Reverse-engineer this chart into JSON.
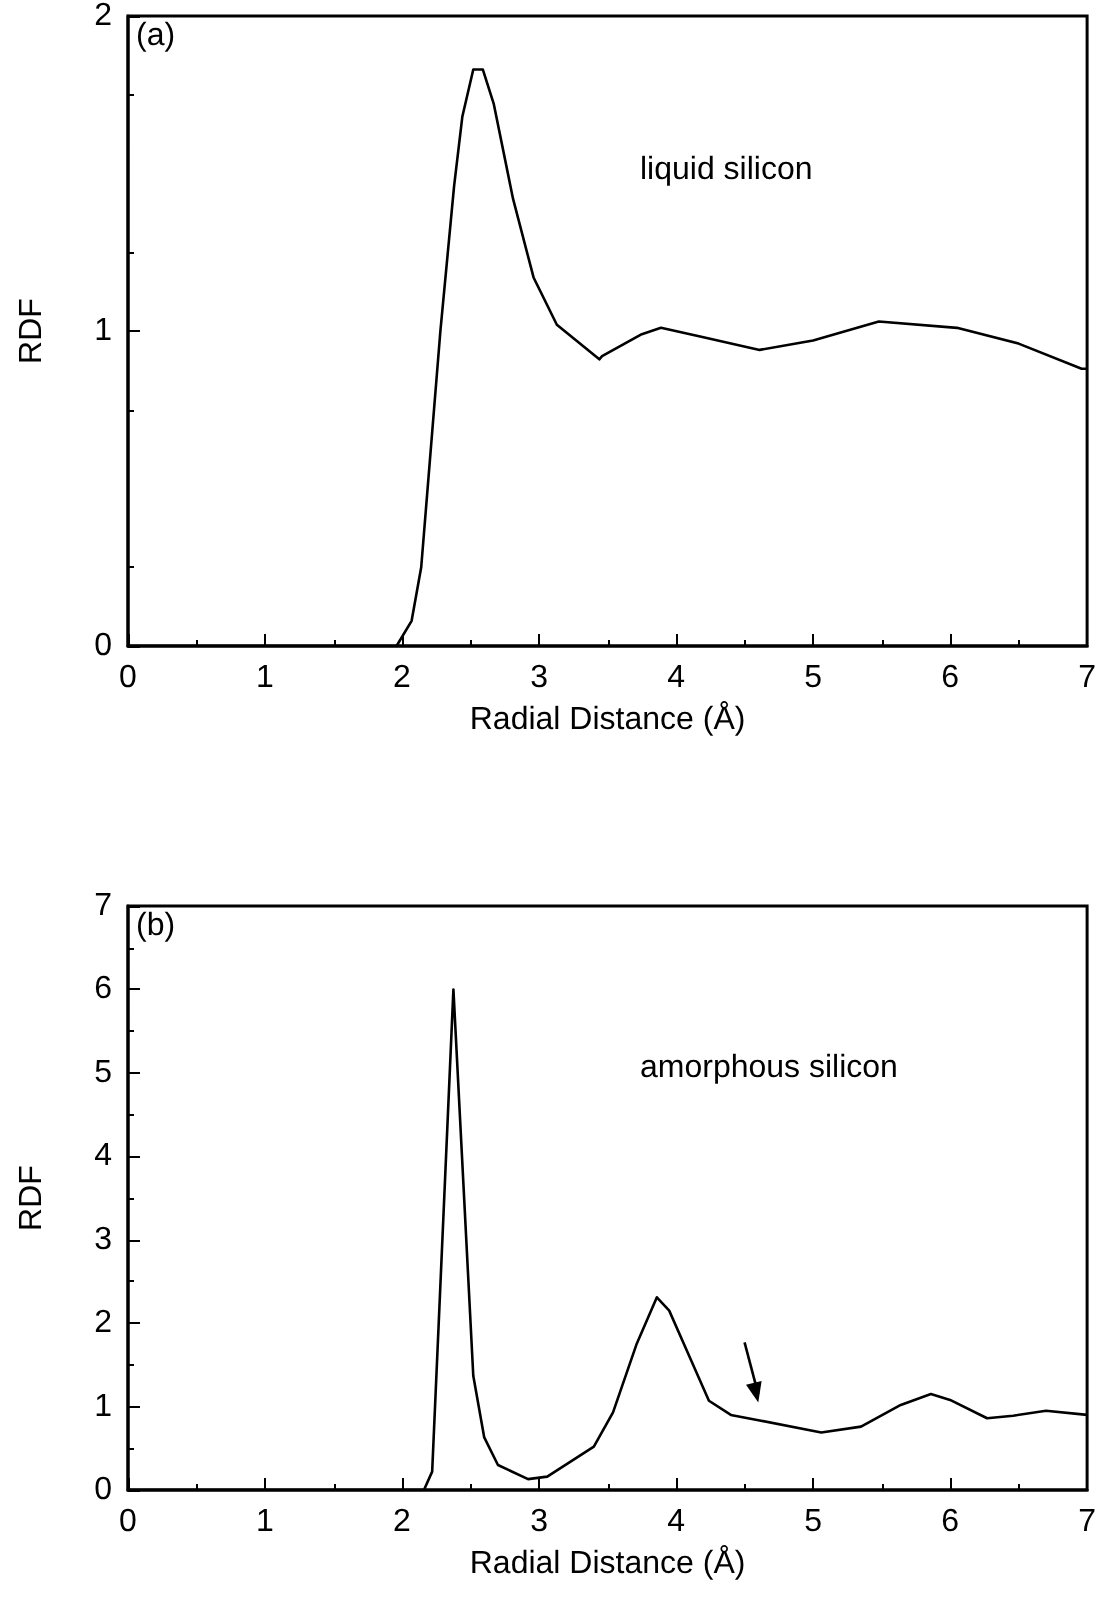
{
  "chart_data": [
    {
      "type": "line",
      "title": "(a)",
      "xlabel": "Radial Distance (Å)",
      "ylabel": "RDF",
      "annotations": [
        "liquid silicon"
      ],
      "xlim": [
        0,
        7
      ],
      "xticks": [
        0,
        1,
        2,
        3,
        4,
        5,
        6,
        7
      ],
      "ylim": [
        0,
        2
      ],
      "yticks": [
        0,
        1,
        2
      ],
      "marker": "none",
      "line_style": "solid",
      "series": [
        {
          "color": "#000000",
          "x": [
            0,
            1.0,
            1.9,
            1.96,
            2.07,
            2.14,
            2.28,
            2.38,
            2.44,
            2.52,
            2.59,
            2.67,
            2.81,
            2.96,
            3.13,
            3.44,
            3.46,
            3.75,
            3.89,
            4.2,
            4.61,
            5.0,
            5.48,
            6.05,
            6.5,
            6.96,
            7.0
          ],
          "values": [
            0,
            0,
            0,
            0,
            0.08,
            0.25,
            1.0,
            1.46,
            1.68,
            1.83,
            1.83,
            1.72,
            1.42,
            1.17,
            1.02,
            0.91,
            0.92,
            0.99,
            1.01,
            0.98,
            0.94,
            0.97,
            1.03,
            1.01,
            0.96,
            0.88,
            0.88
          ]
        }
      ]
    },
    {
      "type": "line",
      "title": "(b)",
      "xlabel": "Radial Distance (Å)",
      "ylabel": "RDF",
      "annotations": [
        "amorphous silicon"
      ],
      "xlim": [
        0,
        7
      ],
      "xticks": [
        0,
        1,
        2,
        3,
        4,
        5,
        6,
        7
      ],
      "ylim": [
        0,
        7
      ],
      "yticks": [
        0,
        1,
        2,
        3,
        4,
        5,
        6,
        7
      ],
      "marker": "none",
      "line_style": "solid",
      "series": [
        {
          "color": "#000000",
          "x": [
            0,
            1.0,
            2.16,
            2.22,
            2.375,
            2.52,
            2.6,
            2.7,
            2.92,
            3.06,
            3.4,
            3.54,
            3.71,
            3.86,
            3.95,
            4.1,
            4.24,
            4.4,
            4.62,
            5.06,
            5.35,
            5.64,
            5.86,
            6.0,
            6.27,
            6.46,
            6.7,
            7.0
          ],
          "values": [
            0,
            0,
            0,
            0.22,
            6.0,
            1.37,
            0.63,
            0.3,
            0.13,
            0.16,
            0.52,
            0.93,
            1.74,
            2.31,
            2.15,
            1.59,
            1.07,
            0.9,
            0.83,
            0.69,
            0.76,
            1.02,
            1.15,
            1.08,
            0.86,
            0.89,
            0.95,
            0.9
          ]
        }
      ]
    }
  ]
}
